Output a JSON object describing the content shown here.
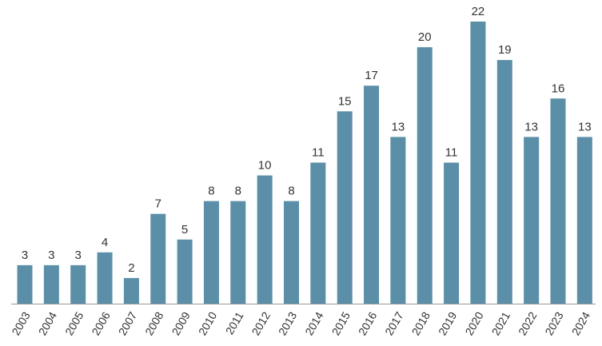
{
  "chart_data": {
    "type": "bar",
    "title": "",
    "xlabel": "",
    "ylabel": "",
    "categories": [
      "2003",
      "2004",
      "2005",
      "2006",
      "2007",
      "2008",
      "2009",
      "2010",
      "2011",
      "2012",
      "2013",
      "2014",
      "2015",
      "2016",
      "2017",
      "2018",
      "2019",
      "2020",
      "2021",
      "2022",
      "2023",
      "2024"
    ],
    "values": [
      3,
      3,
      3,
      4,
      2,
      7,
      5,
      8,
      8,
      10,
      8,
      11,
      15,
      17,
      13,
      20,
      11,
      22,
      19,
      13,
      16,
      13
    ],
    "ylim": [
      0,
      22
    ],
    "grid": false,
    "legend": "none",
    "bar_color": "#5b8fa8",
    "axis_color": "#999999",
    "text_color": "#333333"
  }
}
